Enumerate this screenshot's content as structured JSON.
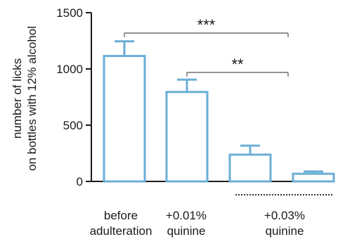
{
  "chart_data": {
    "type": "bar",
    "title": "",
    "xlabel": "",
    "ylabel": [
      "number of licks",
      "on bottles with 12% alcohol"
    ],
    "ylim": [
      0,
      1500
    ],
    "yticks": [
      0,
      500,
      1000,
      1500
    ],
    "grid": false,
    "categories": [
      {
        "lines": [
          "before",
          "adulteration"
        ]
      },
      {
        "lines": [
          "+0.01%",
          "quinine"
        ]
      },
      {
        "lines": [
          "",
          ""
        ]
      },
      {
        "lines": [
          "",
          ""
        ]
      }
    ],
    "group_label": {
      "lines": [
        "+0.03%",
        "quinine"
      ],
      "spans": [
        2,
        3
      ]
    },
    "values": [
      1115,
      795,
      238,
      68
    ],
    "errors": [
      130,
      110,
      80,
      20
    ],
    "colors": {
      "bar": "#6aaed6",
      "axis": "#1a1a1a",
      "bracket": "#555555"
    },
    "significance": [
      {
        "from": 0,
        "to": 3,
        "label": "***"
      },
      {
        "from": 1,
        "to": 3,
        "label": "**"
      }
    ]
  }
}
